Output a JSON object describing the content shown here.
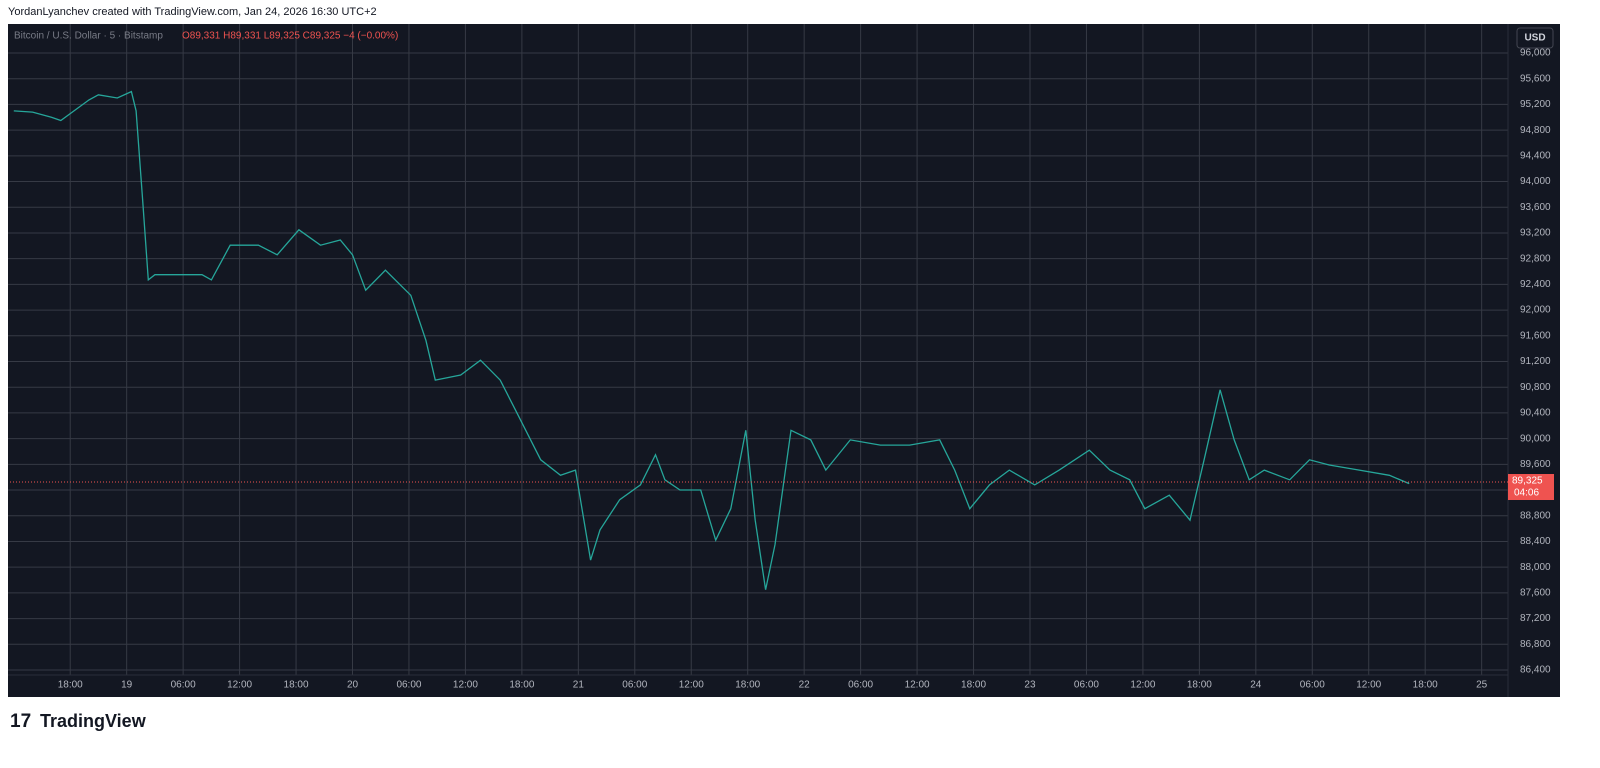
{
  "header": "YordanLyanchev created with TradingView.com, Jan 24, 2026 16:30 UTC+2",
  "symbol": "Bitcoin / U.S. Dollar · 5 · Bitstamp",
  "ohlc": "O89,331 H89,331 L89,325 C89,325 −4 (−0.00%)",
  "currency": "USD",
  "countdown": "04:06",
  "brand": "TradingView",
  "chart_data": {
    "type": "line",
    "x": [
      12,
      14,
      16,
      17,
      20,
      21,
      23,
      24.5,
      25,
      25.7,
      26.3,
      27,
      28.7,
      32,
      33,
      35,
      38,
      40,
      42.3,
      44.6,
      46.7,
      48,
      49.4,
      51.5,
      54.2,
      55.8,
      56.8,
      59.5,
      61.6,
      63.7,
      65.3,
      68,
      70.1,
      71.7,
      73.3,
      74.3,
      76.4,
      78.6,
      80.2,
      81.2,
      82.8,
      85,
      86.6,
      88.2,
      89.8,
      90.8,
      91.9,
      92.9,
      94.6,
      96.7,
      98.3,
      100.9,
      104.1,
      107.2,
      110.4,
      112,
      113.6,
      115.7,
      117.8,
      120.5,
      123.1,
      126.3,
      128.5,
      130.6,
      132.2,
      134.8,
      137,
      138.5,
      140.2,
      141.7,
      143.3,
      144.9,
      147.6,
      149.7,
      151.8,
      155,
      158.2,
      160.3
    ],
    "series": [
      {
        "name": "Bitcoin / U.S. Dollar",
        "color": "#26a69a",
        "values": [
          95100,
          95080,
          95000,
          94950,
          95270,
          95350,
          95300,
          95400,
          95100,
          93700,
          92470,
          92550,
          92550,
          92550,
          92470,
          93010,
          93010,
          92860,
          93250,
          93010,
          93090,
          92860,
          92310,
          92620,
          92230,
          91530,
          90910,
          90990,
          91220,
          90910,
          90450,
          89670,
          89430,
          89510,
          88110,
          88580,
          89050,
          89280,
          89750,
          89360,
          89200,
          89200,
          88420,
          88910,
          90130,
          88730,
          87650,
          88350,
          90130,
          89980,
          89510,
          89980,
          89900,
          89900,
          89980,
          89510,
          88910,
          89280,
          89510,
          89280,
          89510,
          89820,
          89510,
          89360,
          88910,
          89120,
          88730,
          89670,
          90760,
          89980,
          89360,
          89510,
          89360,
          89670,
          89590,
          89510,
          89430,
          89300
        ]
      }
    ],
    "last_price": {
      "value": 89325,
      "label": "89,325"
    },
    "xlim": [
      11.6,
      170.8
    ],
    "xticks": [
      {
        "value": 18,
        "label": "18:00"
      },
      {
        "value": 24,
        "label": "19"
      },
      {
        "value": 30,
        "label": "06:00"
      },
      {
        "value": 36,
        "label": "12:00"
      },
      {
        "value": 42,
        "label": "18:00"
      },
      {
        "value": 48,
        "label": "20"
      },
      {
        "value": 54,
        "label": "06:00"
      },
      {
        "value": 60,
        "label": "12:00"
      },
      {
        "value": 66,
        "label": "18:00"
      },
      {
        "value": 72,
        "label": "21"
      },
      {
        "value": 78,
        "label": "06:00"
      },
      {
        "value": 84,
        "label": "12:00"
      },
      {
        "value": 90,
        "label": "18:00"
      },
      {
        "value": 96,
        "label": "22"
      },
      {
        "value": 102,
        "label": "06:00"
      },
      {
        "value": 108,
        "label": "12:00"
      },
      {
        "value": 114,
        "label": "18:00"
      },
      {
        "value": 120,
        "label": "23"
      },
      {
        "value": 126,
        "label": "06:00"
      },
      {
        "value": 132,
        "label": "12:00"
      },
      {
        "value": 138,
        "label": "18:00"
      },
      {
        "value": 144,
        "label": "24"
      },
      {
        "value": 150,
        "label": "06:00"
      },
      {
        "value": 156,
        "label": "12:00"
      },
      {
        "value": 162,
        "label": "18:00"
      },
      {
        "value": 168,
        "label": "25"
      }
    ],
    "ylim": [
      86322,
      96436
    ],
    "yticks": [
      {
        "value": 86400,
        "label": "86,400"
      },
      {
        "value": 86800,
        "label": "86,800"
      },
      {
        "value": 87200,
        "label": "87,200"
      },
      {
        "value": 87600,
        "label": "87,600"
      },
      {
        "value": 88000,
        "label": "88,000"
      },
      {
        "value": 88400,
        "label": "88,400"
      },
      {
        "value": 88800,
        "label": "88,800"
      },
      {
        "value": 89200,
        "label": "89,200"
      },
      {
        "value": 89600,
        "label": "89,600"
      },
      {
        "value": 90000,
        "label": "90,000"
      },
      {
        "value": 90400,
        "label": "90,400"
      },
      {
        "value": 90800,
        "label": "90,800"
      },
      {
        "value": 91200,
        "label": "91,200"
      },
      {
        "value": 91600,
        "label": "91,600"
      },
      {
        "value": 92000,
        "label": "92,000"
      },
      {
        "value": 92400,
        "label": "92,400"
      },
      {
        "value": 92800,
        "label": "92,800"
      },
      {
        "value": 93200,
        "label": "93,200"
      },
      {
        "value": 93600,
        "label": "93,600"
      },
      {
        "value": 94000,
        "label": "94,000"
      },
      {
        "value": 94400,
        "label": "94,400"
      },
      {
        "value": 94800,
        "label": "94,800"
      },
      {
        "value": 95200,
        "label": "95,200"
      },
      {
        "value": 95600,
        "label": "95,600"
      },
      {
        "value": 96000,
        "label": "96,000"
      }
    ],
    "grid": true
  }
}
